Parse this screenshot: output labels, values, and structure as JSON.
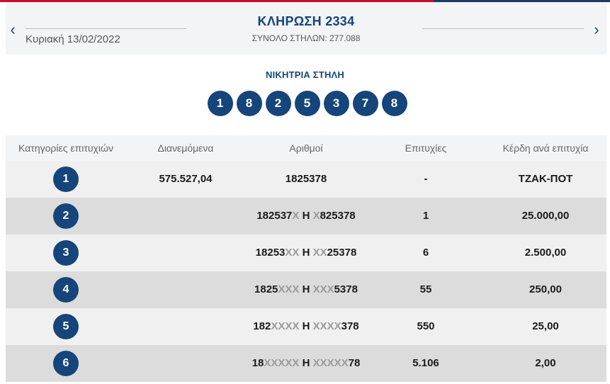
{
  "header": {
    "title": "ΚΛΗΡΩΣΗ 2334",
    "subtitle": "ΣΥΝΟΛΟ ΣΤΗΛΩΝ: 277.088",
    "date": "Κυριακή 13/02/2022",
    "prev_icon": "‹",
    "next_icon": "›"
  },
  "winning": {
    "label": "ΝΙΚΗΤΡΙΑ ΣΤΗΛΗ",
    "numbers": [
      "1",
      "8",
      "2",
      "5",
      "3",
      "7",
      "8"
    ]
  },
  "table": {
    "columns": [
      "Κατηγορίες επιτυχιών",
      "Διανεμόμενα",
      "Αριθμοί",
      "Επιτυχίες",
      "Κέρδη ανά επιτυχία"
    ],
    "rows": [
      {
        "category": "1",
        "distributed": "575.527,04",
        "parts": [
          "1825378"
        ],
        "winners": "-",
        "prize": "ΤΖΑΚ-ΠΟΤ"
      },
      {
        "category": "2",
        "distributed": "",
        "parts": [
          "182537",
          "X",
          " Η ",
          "X",
          "825378"
        ],
        "winners": "1",
        "prize": "25.000,00"
      },
      {
        "category": "3",
        "distributed": "",
        "parts": [
          "18253",
          "XX",
          " Η ",
          "XX",
          "25378"
        ],
        "winners": "6",
        "prize": "2.500,00"
      },
      {
        "category": "4",
        "distributed": "",
        "parts": [
          "1825",
          "XXX",
          " Η ",
          "XXX",
          "5378"
        ],
        "winners": "55",
        "prize": "250,00"
      },
      {
        "category": "5",
        "distributed": "",
        "parts": [
          "182",
          "XXXX",
          " Η ",
          "XXXX",
          "378"
        ],
        "winners": "550",
        "prize": "25,00"
      },
      {
        "category": "6",
        "distributed": "",
        "parts": [
          "18",
          "XXXXX",
          " Η ",
          "XXXXX",
          "78"
        ],
        "winners": "5.106",
        "prize": "2,00"
      }
    ]
  },
  "colors": {
    "brand_navy": "#15457a",
    "accent_red": "#c8102e",
    "masked_digit": "#9a9a9a"
  }
}
